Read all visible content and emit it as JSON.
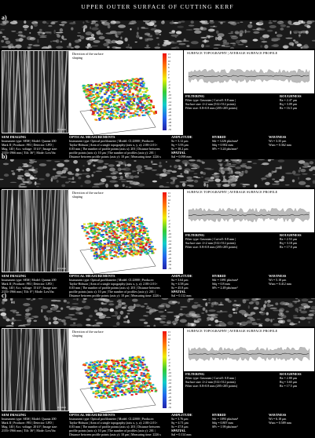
{
  "title": "UPPER OUTER SURFACE OF CUTTING KERF",
  "sections": [
    {
      "label": "a)",
      "scale_bar": "0.5 mm",
      "panel_direction": "Direction of the surface shaping",
      "profile_title": "SURFACE TOPOGRAPHY | AVERAGE SURFACE PROFILE",
      "filtering": [
        "FILTERING",
        "Filter type: Gaussian | Cut-off: 0.8 mm |",
        "Surface size: 2×2 mm (512×512 points)",
        "Filter size: 0.8×0.8 mm (205×205 points)"
      ],
      "roughness": [
        "ROUGHNESS",
        "Ra = 2.47 μm",
        "Rq = 3.09 μm",
        "Rz = 16.5 μm"
      ],
      "sem": [
        "SEM IMAGING",
        "Instrument type: SEM | Model: Quanta 200",
        "Mark II | Producer: FEI | Detector: LFD |",
        "Mag. 140 | Acc. voltage: 15 kV | Image size:",
        "2155×1966 mm | Tilt: 36° | Mode: LowVac"
      ],
      "optical": [
        "OPTICAL MEASUREMENTS",
        "Instrument type: Optical profilometer | Model: CLI2000 | Producer:",
        "Taylor-Hobson | Area of a single topography (axis x, y, z): 2.00×2.01×",
        "0.03 mm | The number of profile points (axis x): 201 | Distance between",
        "profile points (axis x): 10 μm | The number of profiles (axis y): 201 |",
        "Distance between profile points (axis y): 10 μm | Measuring time: 2226 s"
      ],
      "amplitude": [
        "AMPLITUDE",
        "Sz = 3.12 μm",
        "Sq = 3.93 μm",
        "Sz = 38.2 μm",
        "SPATIAL",
        "Sal = 0.098 mm"
      ],
      "hybrid": [
        "HYBRID",
        "Sdr = 1226 pks/mm²",
        "Sdq = 0.902 mm",
        "SPc = 3.24 pks/mm²"
      ],
      "waviness": [
        "WAVINESS",
        "Wt = 3.35 μm",
        "Wsm = 0.362 mm",
        ""
      ]
    },
    {
      "label": "b)",
      "scale_bar": "0.5 mm",
      "panel_direction": "Direction of the surface shaping",
      "profile_title": "SURFACE TOPOGRAPHY | AVERAGE SURFACE PROFILE",
      "filtering": [
        "FILTERING",
        "Filter type: Gaussian | Cut-off: 0.8 mm |",
        "Surface size: 2×2 mm (512×512 points)",
        "Filter size: 0.8×0.8 mm (205×205 points)"
      ],
      "roughness": [
        "ROUGHNESS",
        "Ra = 2.53 μm",
        "Rq = 3.18 μm",
        "Rz = 17.0 μm"
      ],
      "sem": [
        "SEM IMAGING",
        "Instrument type: SEM | Model: Quanta 200",
        "Mark II | Producer: FEI | Detector: LFD |",
        "Mag. 140 | Acc. voltage: 15 kV | Image size:",
        "2155×1966 mm | Tilt: 0° | Mode: LowVac"
      ],
      "optical": [
        "OPTICAL MEASUREMENTS",
        "Instrument type: Optical profilometer | Model: CLI2000 | Producer:",
        "Taylor-Hobson | Area of a single topography (axis x, y, z): 2.00×2.01×",
        "0.03 mm | The number of profile points (axis x): 201 | Distance between",
        "profile points (axis x): 10 μm | The number of profiles (axis y): 201 |",
        "Distance between profile points (axis y): 10 μm | Measuring time: 2226 s"
      ],
      "amplitude": [
        "AMPLITUDE",
        "Sa = 3.64 μm",
        "Sq = 4.58 μm",
        "Sz = 45.8 μm",
        "SPATIAL",
        "Sal = 0.112 mm"
      ],
      "hybrid": [
        "HYBRID",
        "Sdr = 1091 pks/mm²",
        "Sdq = 0.8 mm",
        "SPc = 2.49 pks/mm²"
      ],
      "waviness": [
        "WAVINESS",
        "Wt = 5.18 μm",
        "Wsm = 0.412 mm",
        ""
      ]
    },
    {
      "label": "c)",
      "scale_bar": "0.5 mm",
      "panel_direction": "Direction of the surface shaping",
      "profile_title": "SURFACE TOPOGRAPHY | AVERAGE SURFACE PROFILE",
      "filtering": [
        "FILTERING",
        "Filter type: Gaussian | Cut-off: 0.8 mm |",
        "Surface size: 2×2 mm (512×512 points)",
        "Filter size: 0.8×0.8 mm (205×205 points)"
      ],
      "roughness": [
        "ROUGHNESS",
        "Ra = 2.88 μm",
        "Rq = 3.65 μm",
        "Rz = 17.5 μm"
      ],
      "sem": [
        "SEM IMAGING",
        "Instrument type: SEM | Model: Quanta 200",
        "Mark II | Producer: FEI | Detector: LFD |",
        "Mag. 140 | Acc. voltage: 20 kV | Image size:",
        "2155×1966 mm | Tilt: 36° | Mode: LowVac"
      ],
      "optical": [
        "OPTICAL MEASUREMENTS",
        "Instrument type: Optical profilometer | Model: CLI2000 | Producer:",
        "Taylor-Hobson | Area of a single topography (axis x, y, z): 2.00×2.01×",
        "0.03 mm | The number of profile points (axis x): 201 | Distance between",
        "profile points (axis x): 10 μm | The number of profiles (axis y): 201 |",
        "Distance between profile points (axis y): 10 μm | Measuring time: 2226 s"
      ],
      "amplitude": [
        "AMPLITUDE",
        "Sa = 3.76 μm",
        "Sq = 4.71 μm",
        "Sz = 47.8 μm",
        "SPATIAL",
        "Sal = 0.114 mm"
      ],
      "hybrid": [
        "HYBRID",
        "Sdr = 1093 pks/mm²",
        "Sdq = 0.807 mm",
        "SPc = 1.99 pks/mm²"
      ],
      "waviness": [
        "WAVINESS",
        "Wt = 6.18 μm",
        "Wsm = 0.589 mm",
        ""
      ]
    }
  ],
  "colorbar_ticks": [
    "15",
    "12",
    "10",
    "8",
    "6",
    "4",
    "2",
    "0",
    "-2",
    "-4",
    "-6",
    "-8",
    "-10",
    "-12",
    "-14",
    "-16",
    "-18",
    "-20",
    "-22",
    "-25",
    "-28",
    "-32",
    "-35"
  ],
  "colorbar_unit": "μm"
}
